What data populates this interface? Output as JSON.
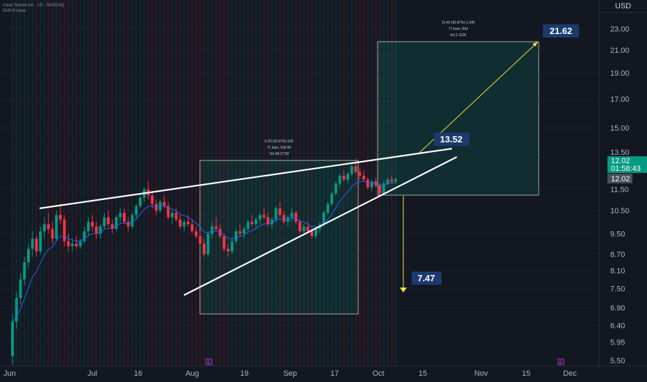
{
  "header": {
    "symbol_line": "Clear Secure Inc  · 1D · NASDAQ",
    "indicator_line": "EMA 9 close"
  },
  "axis": {
    "currency": "USD",
    "y_ticks": [
      23.0,
      21.0,
      19.0,
      17.0,
      15.0,
      13.5,
      11.5,
      10.5,
      9.5,
      8.7,
      8.1,
      7.5,
      6.9,
      6.4,
      5.95,
      5.5
    ],
    "y_tick_labels": [
      "23.00",
      "21.00",
      "19.00",
      "17.00",
      "15.00",
      "13.50",
      "11.50",
      "10.50",
      "9.50",
      "8.70",
      "8.10",
      "7.50",
      "6.90",
      "6.40",
      "5.95",
      "5.50"
    ],
    "x_labels": [
      "Jun",
      "Jul",
      "16",
      "Aug",
      "19",
      "Sep",
      "17",
      "Oct",
      "15",
      "Nov",
      "15",
      "Dec"
    ],
    "earnings_markers": [
      "E",
      "E"
    ]
  },
  "price_tags": {
    "last_price": "12.02",
    "countdown": "01:58:43",
    "prev_close": "12.02",
    "last_price_color": "#089981",
    "prev_close_color": "#4a4e59"
  },
  "range_boxes": {
    "first": {
      "line1": "6.29 (93.87%) 629",
      "line2": "71 bars, 50d 8h",
      "line3": "Vol 48.277M"
    },
    "second": {
      "line1": "10.45 (93.87%) 1,045",
      "line2": "77 bars, 50d",
      "line3": "Vol 2.113K"
    }
  },
  "targets": {
    "upper": "21.62",
    "breakout": "13.52",
    "lower": "7.47",
    "label_bg": "#1c3a6e"
  },
  "chart_data": {
    "type": "candlestick",
    "scale": "log",
    "ylim": [
      5.4,
      23.8
    ],
    "up_color": "#089981",
    "down_color": "#f23645",
    "ema_color": "#2962ff",
    "series": [
      {
        "name": "EMA 9",
        "values": []
      }
    ],
    "annotations": {
      "rising_wedge_upper": {
        "from": [
          "2023-06-10",
          10.62
        ],
        "to": [
          "2023-10-18",
          13.52
        ]
      },
      "rising_wedge_lower": {
        "from": [
          "2023-08-01",
          7.2
        ],
        "to": [
          "2023-10-18",
          13.0
        ]
      },
      "target_up": 21.62,
      "target_down": 7.47
    },
    "candles": [
      [
        5.6,
        6.7,
        5.4,
        6.5
      ],
      [
        6.5,
        7.4,
        6.3,
        7.2
      ],
      [
        7.2,
        8.0,
        7.0,
        7.8
      ],
      [
        7.8,
        8.6,
        7.6,
        8.4
      ],
      [
        8.4,
        9.1,
        8.2,
        8.9
      ],
      [
        8.9,
        9.6,
        8.6,
        9.3
      ],
      [
        9.3,
        9.4,
        8.6,
        8.8
      ],
      [
        8.8,
        9.8,
        8.7,
        9.6
      ],
      [
        9.6,
        10.2,
        9.3,
        9.9
      ],
      [
        9.9,
        10.4,
        9.5,
        9.7
      ],
      [
        9.7,
        10.0,
        9.1,
        9.3
      ],
      [
        9.3,
        10.5,
        9.2,
        10.3
      ],
      [
        10.3,
        10.8,
        9.9,
        10.1
      ],
      [
        10.1,
        10.3,
        9.0,
        9.2
      ],
      [
        9.2,
        9.5,
        8.8,
        9.0
      ],
      [
        9.0,
        9.3,
        8.8,
        9.1
      ],
      [
        9.1,
        9.4,
        8.9,
        9.0
      ],
      [
        9.0,
        9.3,
        8.9,
        9.2
      ],
      [
        9.2,
        9.8,
        9.1,
        9.6
      ],
      [
        9.6,
        10.2,
        9.4,
        10.0
      ],
      [
        10.0,
        10.3,
        9.6,
        9.8
      ],
      [
        9.8,
        10.0,
        9.3,
        9.5
      ],
      [
        9.5,
        9.9,
        9.3,
        9.8
      ],
      [
        9.8,
        10.4,
        9.7,
        10.2
      ],
      [
        10.2,
        10.5,
        9.8,
        9.9
      ],
      [
        9.9,
        10.1,
        9.5,
        9.7
      ],
      [
        9.7,
        10.3,
        9.6,
        10.2
      ],
      [
        10.2,
        10.6,
        10.0,
        10.4
      ],
      [
        10.4,
        10.6,
        9.9,
        10.0
      ],
      [
        10.0,
        10.2,
        9.6,
        9.8
      ],
      [
        9.8,
        10.4,
        9.7,
        10.3
      ],
      [
        10.3,
        10.8,
        10.1,
        10.7
      ],
      [
        10.7,
        11.3,
        10.6,
        11.1
      ],
      [
        11.1,
        11.6,
        10.9,
        11.5
      ],
      [
        11.5,
        11.9,
        11.0,
        11.2
      ],
      [
        11.2,
        11.4,
        10.6,
        10.8
      ],
      [
        10.8,
        11.0,
        10.3,
        10.5
      ],
      [
        10.5,
        11.0,
        10.4,
        10.9
      ],
      [
        10.9,
        11.2,
        10.6,
        10.7
      ],
      [
        10.7,
        10.9,
        10.1,
        10.2
      ],
      [
        10.2,
        10.5,
        9.9,
        10.4
      ],
      [
        10.4,
        10.6,
        10.0,
        10.1
      ],
      [
        10.1,
        10.3,
        9.7,
        9.8
      ],
      [
        9.8,
        10.1,
        9.6,
        10.0
      ],
      [
        10.0,
        10.3,
        9.8,
        9.9
      ],
      [
        9.9,
        10.1,
        9.5,
        9.6
      ],
      [
        9.6,
        9.8,
        9.3,
        9.4
      ],
      [
        9.4,
        9.6,
        9.0,
        9.1
      ],
      [
        9.1,
        9.3,
        8.6,
        8.7
      ],
      [
        8.7,
        9.6,
        8.6,
        9.5
      ],
      [
        9.5,
        10.0,
        9.3,
        9.8
      ],
      [
        9.8,
        10.2,
        9.6,
        9.7
      ],
      [
        9.7,
        9.9,
        9.3,
        9.4
      ],
      [
        9.4,
        9.5,
        8.8,
        8.9
      ],
      [
        8.9,
        9.1,
        8.6,
        8.8
      ],
      [
        8.8,
        9.3,
        8.7,
        9.2
      ],
      [
        9.2,
        9.7,
        9.1,
        9.6
      ],
      [
        9.6,
        9.9,
        9.4,
        9.5
      ],
      [
        9.5,
        9.8,
        9.3,
        9.7
      ],
      [
        9.7,
        10.1,
        9.6,
        10.0
      ],
      [
        10.0,
        10.3,
        9.8,
        9.9
      ],
      [
        9.9,
        10.2,
        9.7,
        10.1
      ],
      [
        10.1,
        10.4,
        9.9,
        10.3
      ],
      [
        10.3,
        10.6,
        10.1,
        10.2
      ],
      [
        10.2,
        10.4,
        9.8,
        9.9
      ],
      [
        9.9,
        10.2,
        9.7,
        10.1
      ],
      [
        10.1,
        10.7,
        10.0,
        10.6
      ],
      [
        10.6,
        10.9,
        10.2,
        10.3
      ],
      [
        10.3,
        10.5,
        9.9,
        10.0
      ],
      [
        10.0,
        10.3,
        9.8,
        10.2
      ],
      [
        10.2,
        10.6,
        10.0,
        10.4
      ],
      [
        10.4,
        10.5,
        9.9,
        10.0
      ],
      [
        10.0,
        10.1,
        9.5,
        9.6
      ],
      [
        9.6,
        9.9,
        9.4,
        9.8
      ],
      [
        9.8,
        10.0,
        9.5,
        9.6
      ],
      [
        9.6,
        9.8,
        9.3,
        9.4
      ],
      [
        9.4,
        9.8,
        9.3,
        9.7
      ],
      [
        9.7,
        10.0,
        9.5,
        9.9
      ],
      [
        9.9,
        10.5,
        9.8,
        10.4
      ],
      [
        10.4,
        10.9,
        10.3,
        10.8
      ],
      [
        10.8,
        11.4,
        10.7,
        11.3
      ],
      [
        11.3,
        11.9,
        11.2,
        11.8
      ],
      [
        11.8,
        12.3,
        11.6,
        12.2
      ],
      [
        12.2,
        12.5,
        11.9,
        12.0
      ],
      [
        12.0,
        12.4,
        11.8,
        12.3
      ],
      [
        12.3,
        12.8,
        12.2,
        12.7
      ],
      [
        12.7,
        13.1,
        12.3,
        12.4
      ],
      [
        12.4,
        12.6,
        12.0,
        12.2
      ],
      [
        12.2,
        12.5,
        11.9,
        12.0
      ],
      [
        12.0,
        12.1,
        11.5,
        11.6
      ],
      [
        11.6,
        12.0,
        11.4,
        11.9
      ],
      [
        11.9,
        12.1,
        11.6,
        11.7
      ],
      [
        11.7,
        11.8,
        11.2,
        11.3
      ],
      [
        11.3,
        11.9,
        11.2,
        11.8
      ],
      [
        11.8,
        12.1,
        11.7,
        12.0
      ],
      [
        12.0,
        12.2,
        11.8,
        11.9
      ],
      [
        11.9,
        12.1,
        11.8,
        12.02
      ]
    ]
  }
}
